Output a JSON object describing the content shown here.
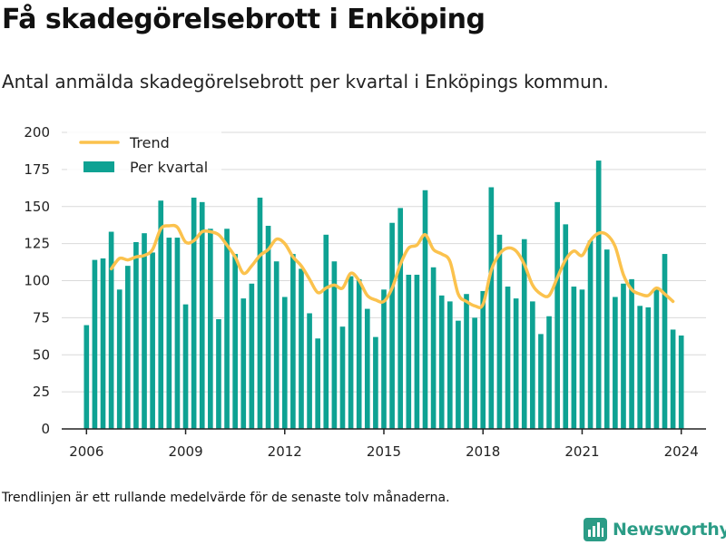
{
  "title": "Få skadegörelsebrott i Enköping",
  "subtitle": "Antal anmälda skadegörelsebrott per kvartal i Enköpings kommun.",
  "footnote": "Trendlinjen är ett rullande medelvärde för de senaste tolv månaderna.",
  "brand": "Newsworthy",
  "colors": {
    "bars": "#0ea293",
    "trend": "#fbc24d",
    "grid": "#d9d9d9",
    "axis": "#222222",
    "brand": "#2b9c86"
  },
  "chart_data": {
    "type": "bar",
    "title": "Få skadegörelsebrott i Enköping",
    "xlabel": "",
    "ylabel": "",
    "ylim": [
      0,
      200
    ],
    "yticks": [
      0,
      25,
      50,
      75,
      100,
      125,
      150,
      175,
      200
    ],
    "xticks": [
      2006,
      2009,
      2012,
      2015,
      2018,
      2021,
      2024
    ],
    "grid": "horizontal",
    "legend_position": "top-left",
    "x": [
      2006.0,
      2006.25,
      2006.5,
      2006.75,
      2007.0,
      2007.25,
      2007.5,
      2007.75,
      2008.0,
      2008.25,
      2008.5,
      2008.75,
      2009.0,
      2009.25,
      2009.5,
      2009.75,
      2010.0,
      2010.25,
      2010.5,
      2010.75,
      2011.0,
      2011.25,
      2011.5,
      2011.75,
      2012.0,
      2012.25,
      2012.5,
      2012.75,
      2013.0,
      2013.25,
      2013.5,
      2013.75,
      2014.0,
      2014.25,
      2014.5,
      2014.75,
      2015.0,
      2015.25,
      2015.5,
      2015.75,
      2016.0,
      2016.25,
      2016.5,
      2016.75,
      2017.0,
      2017.25,
      2017.5,
      2017.75,
      2018.0,
      2018.25,
      2018.5,
      2018.75,
      2019.0,
      2019.25,
      2019.5,
      2019.75,
      2020.0,
      2020.25,
      2020.5,
      2020.75,
      2021.0,
      2021.25,
      2021.5,
      2021.75,
      2022.0,
      2022.25,
      2022.5,
      2022.75,
      2023.0,
      2023.25,
      2023.5,
      2023.75,
      2024.0
    ],
    "series": [
      {
        "name": "Per kvartal",
        "kind": "bar",
        "values": [
          70,
          114,
          115,
          133,
          94,
          110,
          126,
          132,
          119,
          154,
          129,
          129,
          84,
          156,
          153,
          135,
          74,
          135,
          118,
          88,
          98,
          156,
          137,
          113,
          89,
          118,
          108,
          78,
          61,
          131,
          113,
          69,
          103,
          101,
          81,
          62,
          94,
          139,
          149,
          104,
          104,
          161,
          109,
          90,
          86,
          73,
          91,
          75,
          93,
          163,
          131,
          96,
          88,
          128,
          86,
          64,
          76,
          153,
          138,
          96,
          94,
          127,
          181,
          121,
          89,
          98,
          101,
          83,
          82,
          94,
          118,
          67,
          63
        ]
      },
      {
        "name": "Trend",
        "kind": "line",
        "points": [
          [
            2006.75,
            108
          ],
          [
            2007.0,
            115
          ],
          [
            2007.25,
            114
          ],
          [
            2007.5,
            116
          ],
          [
            2007.75,
            117
          ],
          [
            2008.0,
            121
          ],
          [
            2008.25,
            135
          ],
          [
            2008.5,
            137
          ],
          [
            2008.75,
            136
          ],
          [
            2009.0,
            126
          ],
          [
            2009.25,
            127
          ],
          [
            2009.5,
            133
          ],
          [
            2009.75,
            133
          ],
          [
            2010.0,
            131
          ],
          [
            2010.25,
            124
          ],
          [
            2010.5,
            116
          ],
          [
            2010.75,
            105
          ],
          [
            2011.0,
            110
          ],
          [
            2011.25,
            117
          ],
          [
            2011.5,
            121
          ],
          [
            2011.75,
            128
          ],
          [
            2012.0,
            125
          ],
          [
            2012.25,
            116
          ],
          [
            2012.5,
            110
          ],
          [
            2012.75,
            101
          ],
          [
            2013.0,
            92
          ],
          [
            2013.25,
            95
          ],
          [
            2013.5,
            97
          ],
          [
            2013.75,
            95
          ],
          [
            2014.0,
            105
          ],
          [
            2014.25,
            100
          ],
          [
            2014.5,
            90
          ],
          [
            2014.75,
            87
          ],
          [
            2015.0,
            86
          ],
          [
            2015.25,
            95
          ],
          [
            2015.5,
            111
          ],
          [
            2015.75,
            122
          ],
          [
            2016.0,
            124
          ],
          [
            2016.25,
            131
          ],
          [
            2016.5,
            121
          ],
          [
            2016.75,
            118
          ],
          [
            2017.0,
            113
          ],
          [
            2017.25,
            91
          ],
          [
            2017.5,
            86
          ],
          [
            2017.75,
            83
          ],
          [
            2018.0,
            84
          ],
          [
            2018.25,
            107
          ],
          [
            2018.5,
            118
          ],
          [
            2018.75,
            122
          ],
          [
            2019.0,
            120
          ],
          [
            2019.25,
            111
          ],
          [
            2019.5,
            97
          ],
          [
            2019.75,
            91
          ],
          [
            2020.0,
            90
          ],
          [
            2020.25,
            102
          ],
          [
            2020.5,
            114
          ],
          [
            2020.75,
            120
          ],
          [
            2021.0,
            117
          ],
          [
            2021.25,
            127
          ],
          [
            2021.5,
            132
          ],
          [
            2021.75,
            131
          ],
          [
            2022.0,
            123
          ],
          [
            2022.25,
            104
          ],
          [
            2022.5,
            94
          ],
          [
            2022.75,
            91
          ],
          [
            2023.0,
            90
          ],
          [
            2023.25,
            95
          ],
          [
            2023.5,
            91
          ],
          [
            2023.75,
            86
          ]
        ]
      }
    ]
  }
}
